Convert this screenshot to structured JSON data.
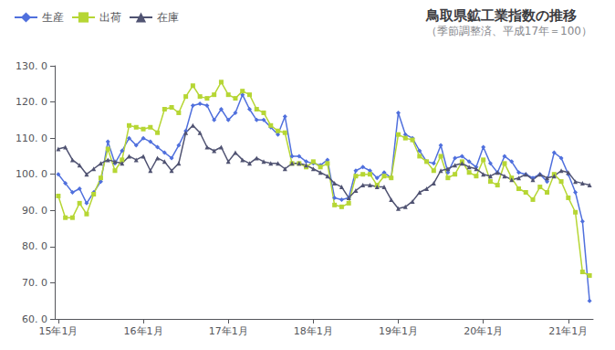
{
  "chart_data": {
    "type": "line",
    "title": "鳥取県鉱工業指数の推移",
    "subtitle": "（季節調整済、平成17年＝100）",
    "categories": [
      "15年1月",
      null,
      null,
      null,
      null,
      null,
      null,
      null,
      null,
      null,
      null,
      null,
      "16年1月",
      null,
      null,
      null,
      null,
      null,
      null,
      null,
      null,
      null,
      null,
      null,
      "17年1月",
      null,
      null,
      null,
      null,
      null,
      null,
      null,
      null,
      null,
      null,
      null,
      "18年1月",
      null,
      null,
      null,
      null,
      null,
      null,
      null,
      null,
      null,
      null,
      null,
      "19年1月",
      null,
      null,
      null,
      null,
      null,
      null,
      null,
      null,
      null,
      null,
      null,
      "20年1月",
      null,
      null,
      null,
      null,
      null,
      null,
      null,
      null,
      null,
      null,
      null,
      "21年1月",
      null,
      null,
      null
    ],
    "series": [
      {
        "name": "生産",
        "marker": "diamond",
        "values": [
          100.0,
          97.5,
          95.0,
          96.0,
          92.0,
          95.0,
          98.0,
          109.0,
          103.0,
          106.5,
          110.0,
          108.0,
          110.0,
          109.0,
          107.5,
          106.0,
          104.5,
          108.0,
          112.0,
          119.0,
          119.5,
          119.0,
          115.0,
          118.0,
          115.0,
          117.0,
          122.0,
          118.0,
          115.0,
          115.0,
          113.0,
          111.0,
          116.0,
          105.0,
          105.0,
          103.5,
          103.0,
          102.5,
          104.0,
          93.5,
          93.0,
          93.5,
          101.0,
          102.0,
          101.0,
          99.0,
          100.5,
          99.0,
          117.0,
          111.0,
          110.0,
          106.5,
          103.5,
          103.0,
          108.0,
          100.5,
          104.5,
          105.0,
          103.5,
          102.0,
          107.5,
          103.0,
          100.5,
          105.0,
          103.5,
          100.5,
          100.0,
          99.0,
          100.0,
          98.0,
          106.0,
          104.5,
          100.0,
          95.0,
          87.0,
          65.0
        ]
      },
      {
        "name": "出荷",
        "marker": "square",
        "values": [
          94.0,
          88.0,
          88.0,
          92.0,
          89.0,
          94.5,
          99.0,
          107.0,
          101.0,
          104.0,
          113.5,
          113.0,
          112.5,
          113.0,
          111.5,
          118.0,
          118.5,
          117.0,
          121.5,
          124.5,
          121.5,
          121.0,
          122.0,
          125.5,
          122.0,
          121.0,
          123.0,
          122.0,
          118.0,
          117.0,
          113.5,
          112.0,
          111.5,
          103.0,
          103.0,
          102.0,
          103.5,
          102.0,
          103.0,
          91.5,
          91.0,
          92.0,
          99.5,
          100.0,
          100.0,
          97.0,
          99.5,
          99.0,
          111.0,
          110.0,
          109.5,
          105.0,
          103.5,
          101.0,
          105.0,
          99.0,
          100.0,
          103.5,
          100.5,
          99.5,
          104.0,
          98.0,
          97.0,
          103.0,
          99.0,
          96.0,
          95.0,
          93.0,
          96.5,
          95.0,
          100.0,
          98.0,
          93.5,
          89.5,
          73.0,
          72.0
        ]
      },
      {
        "name": "在庫",
        "marker": "triangle",
        "values": [
          107.0,
          107.5,
          104.0,
          102.5,
          100.0,
          101.5,
          103.0,
          104.0,
          103.5,
          103.0,
          105.0,
          104.0,
          105.0,
          101.0,
          104.5,
          103.5,
          101.0,
          103.0,
          111.5,
          113.5,
          111.5,
          107.5,
          106.5,
          107.5,
          103.5,
          106.0,
          104.0,
          103.0,
          104.5,
          103.5,
          103.0,
          103.0,
          101.5,
          103.0,
          103.0,
          102.5,
          101.5,
          100.5,
          99.5,
          97.5,
          96.5,
          93.5,
          95.5,
          97.0,
          97.0,
          96.5,
          96.5,
          93.0,
          90.5,
          91.0,
          92.5,
          95.0,
          96.0,
          97.5,
          101.0,
          101.5,
          102.5,
          103.0,
          102.0,
          101.5,
          100.0,
          99.5,
          100.5,
          99.5,
          98.5,
          99.0,
          100.0,
          98.5,
          100.0,
          99.0,
          99.5,
          101.0,
          100.5,
          98.0,
          97.5,
          97.0
        ]
      }
    ],
    "ylim": [
      60,
      130
    ],
    "yticks": [
      {
        "value": 60,
        "label": "60. 0"
      },
      {
        "value": 70,
        "label": "70. 0"
      },
      {
        "value": 80,
        "label": "80. 0"
      },
      {
        "value": 90,
        "label": "90. 0"
      },
      {
        "value": 100,
        "label": "100. 0"
      },
      {
        "value": 110,
        "label": "110. 0"
      },
      {
        "value": 120,
        "label": "120. 0"
      },
      {
        "value": 130,
        "label": "130. 0"
      }
    ],
    "grid": false,
    "legend": "upper left"
  }
}
